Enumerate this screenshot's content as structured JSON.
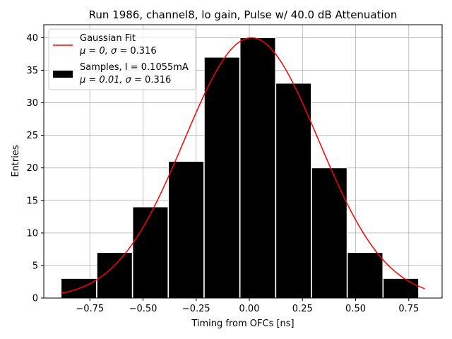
{
  "chart_data": {
    "type": "bar",
    "title": "Run 1986, channel8, lo gain, Pulse w/ 40.0 dB Attenuation",
    "xlabel": "Timing from OFCs [ns]",
    "ylabel": "Entries",
    "xlim": [
      -0.9667,
      0.9068
    ],
    "ylim": [
      0,
      42
    ],
    "xticks": [
      -0.75,
      -0.5,
      -0.25,
      0.0,
      0.25,
      0.5,
      0.75
    ],
    "xtick_labels": [
      "−0.75",
      "−0.50",
      "−0.25",
      "0.00",
      "0.25",
      "0.50",
      "0.75"
    ],
    "yticks": [
      0,
      5,
      10,
      15,
      20,
      25,
      30,
      35,
      40
    ],
    "ytick_labels": [
      "0",
      "5",
      "10",
      "15",
      "20",
      "25",
      "30",
      "35",
      "40"
    ],
    "grid": true,
    "legend_position": "top-left",
    "histogram": {
      "name": "Samples, I = 0.1055mA",
      "stats": "μ = 0.01, σ = 0.316",
      "color": "#000000",
      "edge_color": "#ffffff",
      "bin_edges": [
        -0.885,
        -0.7167,
        -0.5483,
        -0.38,
        -0.2117,
        -0.0433,
        0.125,
        0.2933,
        0.4617,
        0.63,
        0.7983
      ],
      "values": [
        3,
        7,
        14,
        21,
        37,
        40,
        33,
        20,
        7,
        3
      ],
      "bar_width": 0.166
    },
    "fit": {
      "name": "Gaussian Fit",
      "stats": "μ = 0, σ = 0.316",
      "color": "#ff0000",
      "mu": 0.01,
      "sigma": 0.316,
      "amplitude": 40,
      "x_range": [
        -0.885,
        0.825
      ]
    },
    "legend": {
      "fit_label": "Gaussian Fit",
      "fit_stats_prefix": "μ = 0, ",
      "fit_stats_suffix": " = 0.316",
      "hist_label": "Samples, I = 0.1055mA",
      "hist_stats_prefix": "μ = 0.01, ",
      "hist_stats_suffix": " = 0.316",
      "sigma_symbol": "σ"
    }
  }
}
